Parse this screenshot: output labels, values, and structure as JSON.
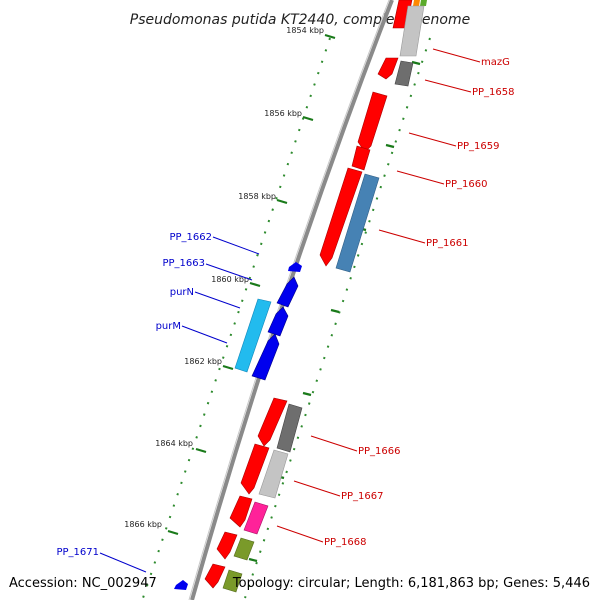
{
  "title": "Pseudomonas putida KT2440, complete genome",
  "accession": "Accession: NC_002947",
  "topology": "Topology: circular; Length: 6,181,863 bp; Genes: 5,446",
  "colors": {
    "backbone": "#8a8a8a",
    "tick": "#1a7a1a",
    "dot": "#2e8b2e",
    "forward_label": "#cc0000",
    "reverse_label": "#0000cc",
    "red": "#ff0000",
    "blue": "#0000ee",
    "cyan": "#22bbee",
    "steel": "#4682b4",
    "dark_gray": "#6e6e6e",
    "light_gray": "#c4c4c4",
    "pink": "#ff2299",
    "olive": "#7a9a2a",
    "orange": "#ff8800"
  },
  "scale_labels": [
    "1854 kbp",
    "1856 kbp",
    "1858 kbp",
    "1860 kbp",
    "1862 kbp",
    "1864 kbp",
    "1866 kbp"
  ],
  "forward_labels": [
    "mazG",
    "PP_1658",
    "PP_1659",
    "PP_1660",
    "PP_1661",
    "PP_1666",
    "PP_1667",
    "PP_1668"
  ],
  "reverse_labels": [
    "PP_1662",
    "PP_1663",
    "purN",
    "purM",
    "PP_1671"
  ]
}
